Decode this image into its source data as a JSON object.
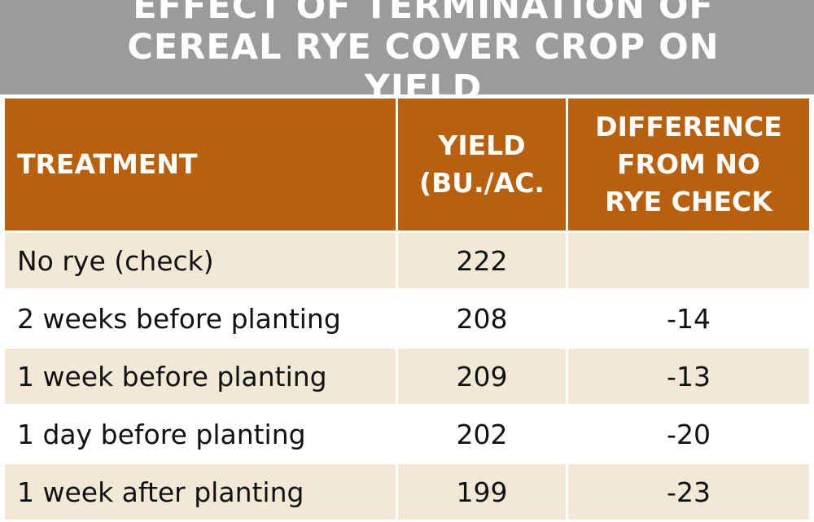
{
  "title": "EFFECT OF TERMINATION OF CEREAL RYE COVER CROP ON YIELD",
  "colors": {
    "title_bg": "#9b9b9b",
    "header_bg": "#b9600f",
    "row_shade": "#f1e8d6"
  },
  "chart_data": {
    "type": "table",
    "title": "EFFECT OF TERMINATION OF CEREAL RYE COVER CROP ON YIELD",
    "columns": [
      "TREATMENT",
      "YIELD (BU./AC.",
      "DIFFERENCE FROM NO RYE CHECK"
    ],
    "rows": [
      {
        "treatment": "No rye (check)",
        "yield": "222",
        "difference": ""
      },
      {
        "treatment": "2 weeks before planting",
        "yield": "208",
        "difference": "-14"
      },
      {
        "treatment": "1 week before planting",
        "yield": "209",
        "difference": "-13"
      },
      {
        "treatment": "1 day before planting",
        "yield": "202",
        "difference": "-20"
      },
      {
        "treatment": "1 week after planting",
        "yield": "199",
        "difference": "-23"
      }
    ]
  }
}
